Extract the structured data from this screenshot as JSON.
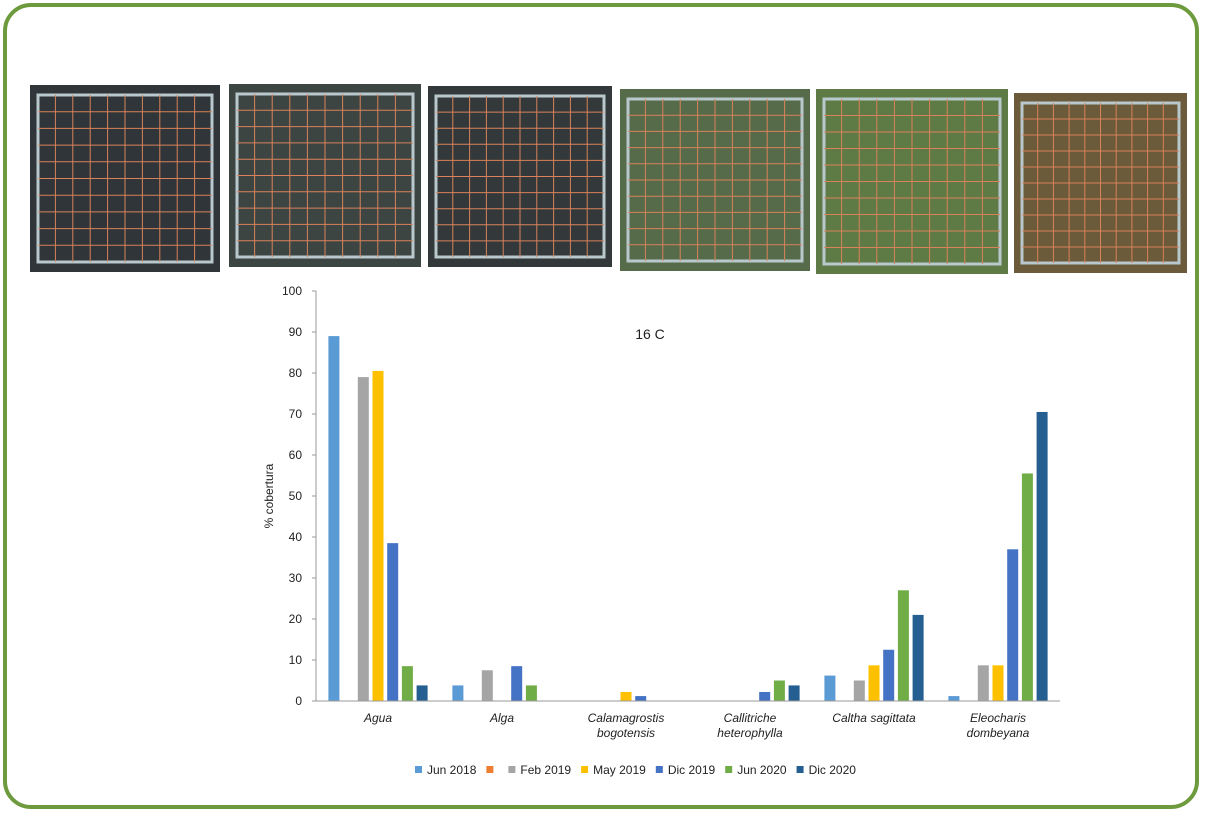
{
  "chart_data": {
    "type": "bar",
    "title": "16 C",
    "ylabel": "% cobertura",
    "categories": [
      [
        "Agua"
      ],
      [
        "Alga"
      ],
      [
        "Calamagrostis",
        "bogotensis"
      ],
      [
        "Callitriche",
        "heterophylla"
      ],
      [
        "Caltha sagittata"
      ],
      [
        "Eleocharis",
        "dombeyana"
      ]
    ],
    "ylim": [
      0,
      100
    ],
    "yticks": [
      0,
      10,
      20,
      30,
      40,
      50,
      60,
      70,
      80,
      90,
      100
    ],
    "series": [
      {
        "name": "Jun 2018",
        "color": "#5b9bd5",
        "values": [
          89,
          3.8,
          0,
          0,
          6.2,
          1.2
        ]
      },
      {
        "name": null,
        "color": "#ed7d31",
        "values": [
          null,
          null,
          null,
          null,
          null,
          null
        ]
      },
      {
        "name": "Feb 2019",
        "color": "#a5a5a5",
        "values": [
          79,
          7.5,
          0,
          0,
          5,
          8.7
        ]
      },
      {
        "name": "May 2019",
        "color": "#ffc000",
        "values": [
          80.5,
          0,
          2.2,
          0,
          8.7,
          8.7
        ]
      },
      {
        "name": "Dic 2019",
        "color": "#4472c4",
        "values": [
          38.5,
          8.5,
          1.2,
          2.2,
          12.5,
          37
        ]
      },
      {
        "name": "Jun 2020",
        "color": "#70ad47",
        "values": [
          8.5,
          3.8,
          0,
          5,
          27,
          55.5
        ]
      },
      {
        "name": "Dic 2020",
        "color": "#255e91",
        "values": [
          3.8,
          0,
          0,
          3.8,
          21,
          70.5
        ]
      }
    ]
  }
}
